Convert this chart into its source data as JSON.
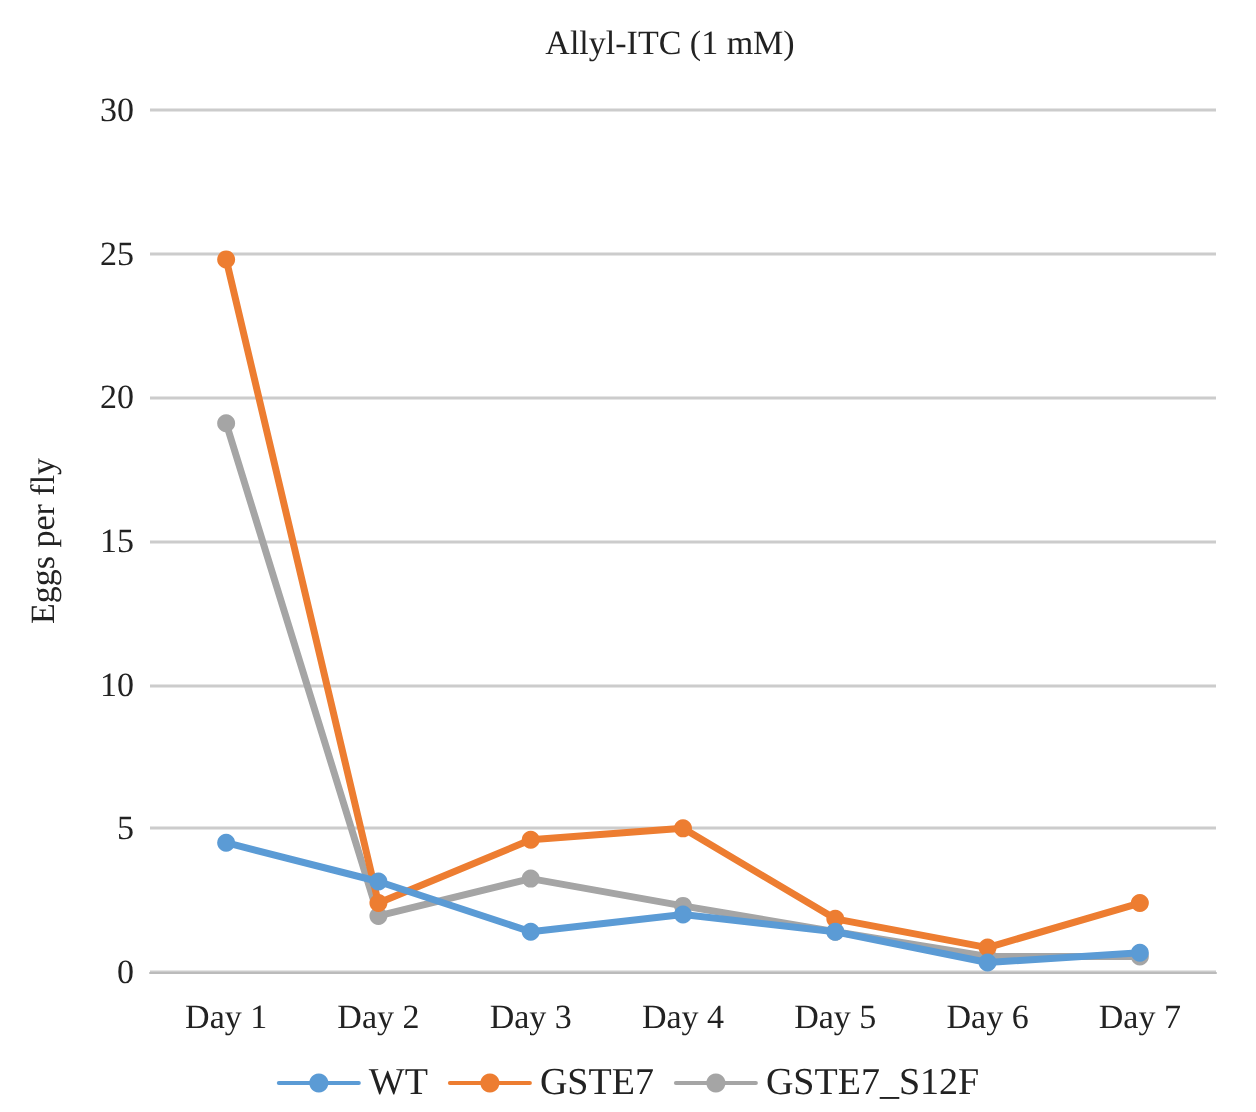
{
  "chart_data": {
    "type": "line",
    "title": "Allyl-ITC (1 mM)",
    "ylabel": "Eggs per fly",
    "categories": [
      "Day 1",
      "Day 2",
      "Day 3",
      "Day 4",
      "Day 5",
      "Day 6",
      "Day 7"
    ],
    "series": [
      {
        "name": "WT",
        "color": "#5b9bd5",
        "values": [
          4.5,
          3.15,
          1.4,
          2.0,
          1.4,
          0.33,
          0.67
        ]
      },
      {
        "name": "GSTE7",
        "color": "#ed7d31",
        "values": [
          24.8,
          2.4,
          4.6,
          5.0,
          1.85,
          0.85,
          2.4
        ]
      },
      {
        "name": "GSTE7_S12F",
        "color": "#a5a5a5",
        "values": [
          19.1,
          1.95,
          3.25,
          2.3,
          1.4,
          0.54,
          0.54
        ]
      }
    ],
    "ylim": [
      0,
      30
    ],
    "yticks": [
      0,
      5,
      10,
      15,
      20,
      25,
      30
    ],
    "grid": "y",
    "legend": "bottom",
    "marker": "circle"
  }
}
